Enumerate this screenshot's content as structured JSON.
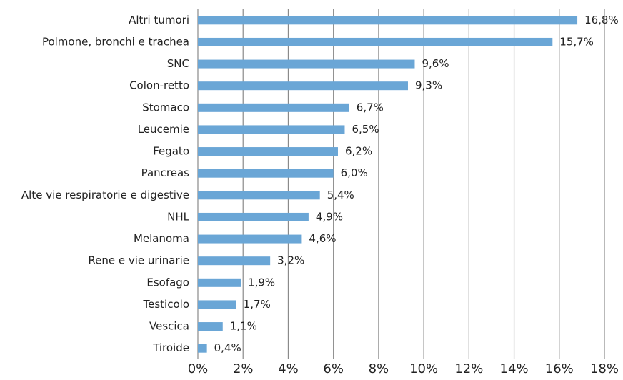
{
  "chart_data": {
    "type": "barh",
    "categories": [
      "Altri tumori",
      "Polmone, bronchi e trachea",
      "SNC",
      "Colon-retto",
      "Stomaco",
      "Leucemie",
      "Fegato",
      "Pancreas",
      "Alte vie respiratorie e digestive",
      "NHL",
      "Melanoma",
      "Rene e vie urinarie",
      "Esofago",
      "Testicolo",
      "Vescica",
      "Tiroide"
    ],
    "values": [
      16.8,
      15.7,
      9.6,
      9.3,
      6.7,
      6.5,
      6.2,
      6.0,
      5.4,
      4.9,
      4.6,
      3.2,
      1.9,
      1.7,
      1.1,
      0.4
    ],
    "value_labels": [
      "16,8%",
      "15,7%",
      "9,6%",
      "9,3%",
      "6,7%",
      "6,5%",
      "6,2%",
      "6,0%",
      "5,4%",
      "4,9%",
      "4,6%",
      "3,2%",
      "1,9%",
      "1,7%",
      "1,1%",
      "0,4%"
    ],
    "color": "#6aa6d6",
    "xlim": [
      0,
      18
    ],
    "xticks": [
      {
        "value": 0,
        "label": "0%"
      },
      {
        "value": 2,
        "label": "2%"
      },
      {
        "value": 4,
        "label": "4%"
      },
      {
        "value": 6,
        "label": "6%"
      },
      {
        "value": 8,
        "label": "8%"
      },
      {
        "value": 10,
        "label": "10%"
      },
      {
        "value": 12,
        "label": "12%"
      },
      {
        "value": 14,
        "label": "14%"
      },
      {
        "value": 16,
        "label": "16%"
      },
      {
        "value": 18,
        "label": "18%"
      }
    ],
    "grid": true
  }
}
